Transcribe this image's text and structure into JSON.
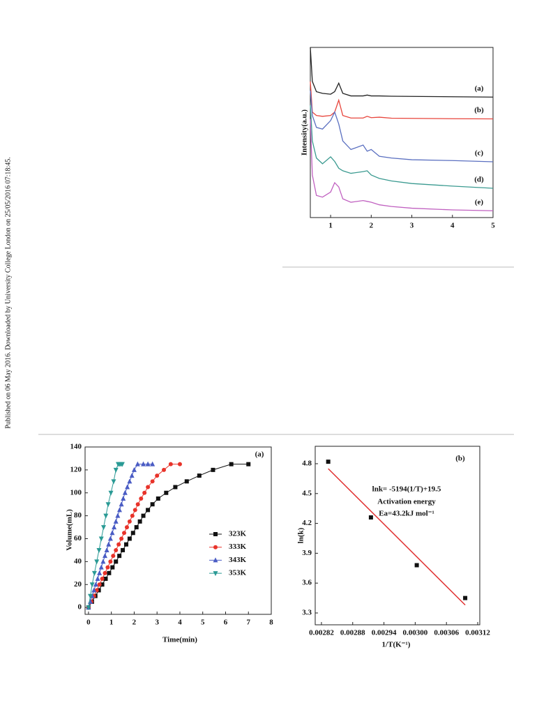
{
  "side_text": "Published on 06 May 2016. Downloaded by University College London on 25/05/2016 07:18:45.",
  "chart_data": [
    {
      "type": "line",
      "ylabel": "Intensity(a.u.)",
      "x": [
        0.5,
        0.55,
        0.65,
        0.8,
        1.0,
        1.1,
        1.2,
        1.3,
        1.5,
        1.8,
        1.9,
        2.0,
        2.2,
        2.5,
        3,
        4,
        5
      ],
      "xlim": [
        0.5,
        5
      ],
      "xticks": [
        1,
        2,
        3,
        4,
        5
      ],
      "ylim": [
        0,
        100
      ],
      "series": [
        {
          "name": "(a)",
          "color": "#222222",
          "values": [
            100,
            80,
            74,
            73,
            72.5,
            74,
            79,
            73,
            71.5,
            71.5,
            72,
            71.5,
            71.5,
            71.3,
            71.2,
            71,
            70.8
          ]
        },
        {
          "name": "(b)",
          "color": "#e8453c",
          "values": [
            80,
            62,
            60,
            59.5,
            60,
            62,
            69,
            60,
            58.5,
            58.5,
            59.5,
            58.7,
            59,
            58.4,
            58.3,
            58.1,
            58
          ]
        },
        {
          "name": "(c)",
          "color": "#5a6fc0",
          "values": [
            74.6,
            60,
            53,
            52,
            57,
            62,
            55,
            45,
            40,
            42.6,
            39,
            40,
            36,
            35,
            34,
            33.5,
            32.8
          ]
        },
        {
          "name": "(d)",
          "color": "#3a9a90",
          "values": [
            66,
            45,
            35,
            31.6,
            35.7,
            33,
            29,
            27.5,
            26,
            27,
            27.5,
            25,
            23,
            21.5,
            20,
            18.5,
            17.2
          ]
        },
        {
          "name": "(e)",
          "color": "#c060c0",
          "values": [
            58,
            25,
            13,
            12,
            15,
            20.5,
            18,
            11,
            9,
            10,
            9.5,
            9,
            7.5,
            6.5,
            5.5,
            4.5,
            4
          ]
        }
      ]
    },
    {
      "type": "scatter",
      "xlabel": "Time(min)",
      "ylabel": "Volume(mL)",
      "annotations": [
        "(a)"
      ],
      "xlim": [
        -0.15,
        8
      ],
      "xticks": [
        0,
        1,
        2,
        3,
        4,
        5,
        6,
        7,
        8
      ],
      "ylim": [
        -6,
        140
      ],
      "yticks": [
        0,
        20,
        40,
        60,
        80,
        100,
        120,
        140
      ],
      "legend": "center right",
      "series": [
        {
          "name": "323K",
          "color": "#111111",
          "marker": "square",
          "x": [
            0,
            0.15,
            0.3,
            0.45,
            0.6,
            0.75,
            0.9,
            1.05,
            1.2,
            1.35,
            1.5,
            1.65,
            1.8,
            1.95,
            2.1,
            2.25,
            2.4,
            2.6,
            2.8,
            3.05,
            3.4,
            3.8,
            4.3,
            4.85,
            5.45,
            6.25,
            7.0
          ],
          "values": [
            0,
            5,
            10,
            15,
            20,
            25,
            30,
            35,
            40,
            45,
            50,
            55,
            60,
            65,
            70,
            75,
            80,
            85,
            90,
            95,
            100,
            105,
            110,
            115,
            120,
            125,
            125
          ]
        },
        {
          "name": "333K",
          "color": "#e8332a",
          "marker": "circle",
          "x": [
            0,
            0.12,
            0.24,
            0.36,
            0.48,
            0.6,
            0.72,
            0.84,
            0.96,
            1.08,
            1.2,
            1.32,
            1.44,
            1.56,
            1.68,
            1.8,
            1.92,
            2.04,
            2.16,
            2.3,
            2.45,
            2.6,
            2.8,
            3.0,
            3.3,
            3.6,
            4.0
          ],
          "values": [
            0,
            5,
            10,
            15,
            20,
            25,
            30,
            35,
            40,
            45,
            50,
            55,
            60,
            65,
            70,
            75,
            80,
            85,
            90,
            95,
            100,
            105,
            110,
            115,
            120,
            125,
            125
          ]
        },
        {
          "name": "343K",
          "color": "#4a5cc4",
          "marker": "triangle",
          "x": [
            0,
            0.08,
            0.16,
            0.24,
            0.32,
            0.4,
            0.48,
            0.56,
            0.64,
            0.72,
            0.8,
            0.88,
            0.96,
            1.04,
            1.12,
            1.2,
            1.28,
            1.36,
            1.44,
            1.52,
            1.6,
            1.7,
            1.8,
            1.9,
            2.0,
            2.15,
            2.4,
            2.6,
            2.8
          ],
          "values": [
            0,
            5,
            10,
            15,
            20,
            25,
            30,
            35,
            40,
            45,
            50,
            55,
            60,
            65,
            70,
            75,
            80,
            85,
            90,
            95,
            100,
            105,
            110,
            115,
            120,
            125,
            125,
            125,
            125
          ]
        },
        {
          "name": "353K",
          "color": "#2a9a95",
          "marker": "triangle-down",
          "x": [
            0,
            0.08,
            0.16,
            0.26,
            0.36,
            0.46,
            0.56,
            0.66,
            0.76,
            0.86,
            0.98,
            1.1,
            1.2,
            1.3,
            1.36,
            1.42,
            1.48
          ],
          "values": [
            0,
            10,
            20,
            30,
            40,
            50,
            60,
            70,
            80,
            90,
            100,
            110,
            120,
            125,
            125,
            125,
            125
          ]
        }
      ]
    },
    {
      "type": "scatter",
      "xlabel": "1/T(K⁻¹)",
      "ylabel": "ln(k)",
      "annotations": [
        "(b)",
        "lnk= -5194(1/T)+19.5",
        "Activation energy",
        "Ea=43.2kJ mol⁻¹"
      ],
      "xlim": [
        0.002808,
        0.003124
      ],
      "xticks": [
        0.00282,
        0.00288,
        0.00294,
        {
          "value": 0.003,
          "label": "0.00300"
        },
        0.00306,
        0.00312
      ],
      "ylim": [
        3.181,
        4.975
      ],
      "yticks": [
        3.3,
        3.6,
        3.9,
        4.2,
        4.5,
        4.8
      ],
      "series": [
        {
          "color": "#111111",
          "marker": "square",
          "x": [
            0.002833,
            0.002915,
            0.003003,
            0.003096
          ],
          "values": [
            4.82,
            4.26,
            3.78,
            3.45
          ]
        }
      ],
      "fit_line": {
        "color": "#e03030",
        "x": [
          0.002833,
          0.003096
        ],
        "values": [
          4.75,
          3.38
        ]
      }
    }
  ]
}
